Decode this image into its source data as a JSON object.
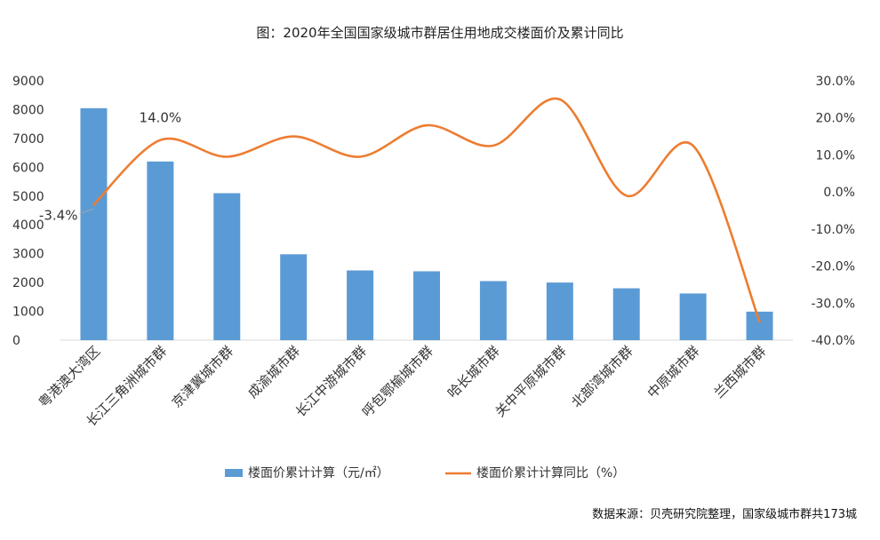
{
  "chart_data": {
    "type": "bar+line",
    "title": "图：2020年全国国家级城市群居住用地成交楼面价及累计同比",
    "categories": [
      "粤港澳大湾区",
      "长江三角洲城市群",
      "京津冀城市群",
      "成渝城市群",
      "长江中游城市群",
      "呼包鄂榆城市群",
      "哈长城市群",
      "关中平原城市群",
      "北部湾城市群",
      "中原城市群",
      "兰西城市群"
    ],
    "series": [
      {
        "name": "楼面价累计计算（元/㎡）",
        "type": "bar",
        "axis": "left",
        "color": "#5b9bd5",
        "values": [
          8050,
          6200,
          5100,
          2980,
          2420,
          2390,
          2050,
          2000,
          1800,
          1620,
          990
        ]
      },
      {
        "name": "楼面价累计计算同比（%）",
        "type": "line",
        "axis": "right",
        "color": "#ed7d31",
        "values": [
          -3.4,
          14.0,
          9.5,
          15.0,
          9.5,
          18.0,
          12.5,
          25.0,
          -1.0,
          12.5,
          -35.0
        ]
      }
    ],
    "left_axis": {
      "min": 0,
      "max": 9000,
      "step": 1000,
      "ticks": [
        "0",
        "1000",
        "2000",
        "3000",
        "4000",
        "5000",
        "6000",
        "7000",
        "8000",
        "9000"
      ]
    },
    "right_axis": {
      "min": -40,
      "max": 30,
      "step": 10,
      "ticks": [
        "-40.0%",
        "-30.0%",
        "-20.0%",
        "-10.0%",
        "0.0%",
        "10.0%",
        "20.0%",
        "30.0%"
      ]
    },
    "annotations": [
      {
        "text": "-3.4%",
        "category_index": 0
      },
      {
        "text": "14.0%",
        "category_index": 1
      }
    ],
    "legend_position": "bottom"
  },
  "source": "数据来源：贝壳研究院整理，国家级城市群共173城"
}
